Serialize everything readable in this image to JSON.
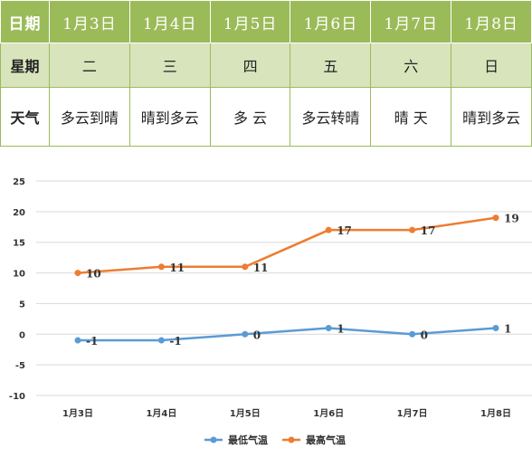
{
  "table": {
    "row_labels": {
      "date": "日期",
      "weekday": "星期",
      "weather": "天气"
    },
    "dates": [
      "1月3日",
      "1月4日",
      "1月5日",
      "1月6日",
      "1月7日",
      "1月8日"
    ],
    "weekdays": [
      "二",
      "三",
      "四",
      "五",
      "六",
      "日"
    ],
    "weather": [
      "多云到晴",
      "晴到多云",
      "多 云",
      "多云转晴",
      "晴 天",
      "晴到多云"
    ]
  },
  "colors": {
    "table_header": "#9bbb59",
    "table_weekday_row": "#d8e4bc",
    "series_low": "#5b9bd5",
    "series_high": "#ed7d31",
    "grid": "#d9d9d9"
  },
  "chart_data": {
    "type": "line",
    "x": [
      "1月3日",
      "1月4日",
      "1月5日",
      "1月6日",
      "1月7日",
      "1月8日"
    ],
    "series": [
      {
        "name": "最低气温",
        "values": [
          -1,
          -1,
          0,
          1,
          0,
          1
        ],
        "color": "#5b9bd5"
      },
      {
        "name": "最高气温",
        "values": [
          10,
          11,
          11,
          17,
          17,
          19
        ],
        "color": "#ed7d31"
      }
    ],
    "ylim": [
      -10,
      25
    ],
    "yticks": [
      25,
      20,
      15,
      10,
      5,
      0,
      -5,
      -10
    ],
    "grid": true,
    "legend_position": "bottom",
    "data_labels": true
  }
}
